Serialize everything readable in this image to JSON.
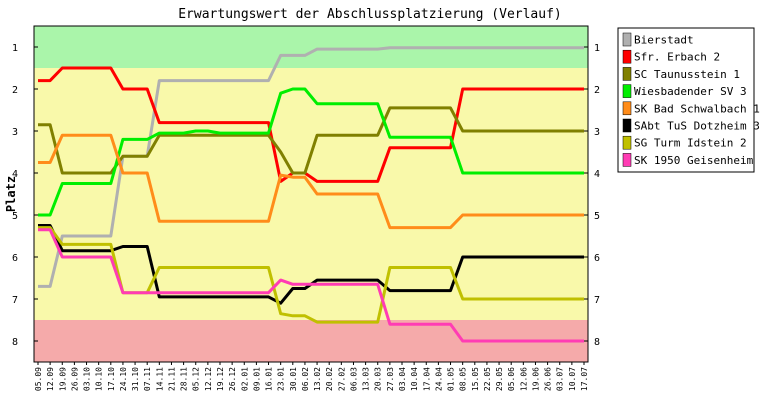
{
  "chart_data": {
    "type": "line",
    "title": "Erwartungswert der Abschlussplatzierung (Verlauf)",
    "xlabel": "",
    "ylabel": "Platz",
    "ylim": [
      0.5,
      8.5
    ],
    "y_inverted": true,
    "yticks": [
      1,
      2,
      3,
      4,
      5,
      6,
      7,
      8
    ],
    "grid": false,
    "legend_position": "right",
    "zones": [
      {
        "from": 0.5,
        "to": 1.5,
        "color": "#aaf5aa"
      },
      {
        "from": 1.5,
        "to": 7.5,
        "color": "#f9f9aa"
      },
      {
        "from": 7.5,
        "to": 8.5,
        "color": "#f5aaaa"
      }
    ],
    "categories": [
      "05.09",
      "12.09",
      "19.09",
      "26.09",
      "03.10",
      "10.10",
      "17.10",
      "24.10",
      "31.10",
      "07.11",
      "14.11",
      "21.11",
      "28.11",
      "05.12",
      "12.12",
      "19.12",
      "26.12",
      "02.01",
      "09.01",
      "16.01",
      "23.01",
      "30.01",
      "06.02",
      "13.02",
      "20.02",
      "27.02",
      "06.03",
      "13.03",
      "20.03",
      "27.03",
      "03.04",
      "10.04",
      "17.04",
      "24.04",
      "01.05",
      "08.05",
      "15.05",
      "22.05",
      "29.05",
      "05.06",
      "12.06",
      "19.06",
      "26.06",
      "03.07",
      "10.07",
      "17.07"
    ],
    "series": [
      {
        "name": "Bierstadt",
        "color": "#b0b0b0",
        "values": [
          6.7,
          6.7,
          5.5,
          5.5,
          5.5,
          5.5,
          5.5,
          3.6,
          3.6,
          3.6,
          1.8,
          1.8,
          1.8,
          1.8,
          1.8,
          1.8,
          1.8,
          1.8,
          1.8,
          1.8,
          1.2,
          1.2,
          1.2,
          1.05,
          1.05,
          1.05,
          1.05,
          1.05,
          1.05,
          1.02,
          1.02,
          1.02,
          1.02,
          1.02,
          1.02,
          1.02,
          1.02,
          1.02,
          1.02,
          1.02,
          1.02,
          1.02,
          1.02,
          1.02,
          1.02,
          1.02
        ]
      },
      {
        "name": "Sfr. Erbach 2",
        "color": "#ff0000",
        "values": [
          1.8,
          1.8,
          1.5,
          1.5,
          1.5,
          1.5,
          1.5,
          2.0,
          2.0,
          2.0,
          2.8,
          2.8,
          2.8,
          2.8,
          2.8,
          2.8,
          2.8,
          2.8,
          2.8,
          2.8,
          4.2,
          4.0,
          4.0,
          4.2,
          4.2,
          4.2,
          4.2,
          4.2,
          4.2,
          3.4,
          3.4,
          3.4,
          3.4,
          3.4,
          3.4,
          2.0,
          2.0,
          2.0,
          2.0,
          2.0,
          2.0,
          2.0,
          2.0,
          2.0,
          2.0,
          2.0
        ]
      },
      {
        "name": "SC Taunusstein 1",
        "color": "#808000",
        "values": [
          2.85,
          2.85,
          4.0,
          4.0,
          4.0,
          4.0,
          4.0,
          3.6,
          3.6,
          3.6,
          3.1,
          3.1,
          3.1,
          3.1,
          3.1,
          3.1,
          3.1,
          3.1,
          3.1,
          3.1,
          3.5,
          4.0,
          4.0,
          3.1,
          3.1,
          3.1,
          3.1,
          3.1,
          3.1,
          2.45,
          2.45,
          2.45,
          2.45,
          2.45,
          2.45,
          3.0,
          3.0,
          3.0,
          3.0,
          3.0,
          3.0,
          3.0,
          3.0,
          3.0,
          3.0,
          3.0
        ]
      },
      {
        "name": "Wiesbadender SV 3",
        "color": "#00ee00",
        "values": [
          5.0,
          5.0,
          4.25,
          4.25,
          4.25,
          4.25,
          4.25,
          3.2,
          3.2,
          3.2,
          3.05,
          3.05,
          3.05,
          3.0,
          3.0,
          3.05,
          3.05,
          3.05,
          3.05,
          3.05,
          2.1,
          2.0,
          2.0,
          2.35,
          2.35,
          2.35,
          2.35,
          2.35,
          2.35,
          3.15,
          3.15,
          3.15,
          3.15,
          3.15,
          3.15,
          4.0,
          4.0,
          4.0,
          4.0,
          4.0,
          4.0,
          4.0,
          4.0,
          4.0,
          4.0,
          4.0
        ]
      },
      {
        "name": "SK Bad Schwalbach 1",
        "color": "#ff8c1a",
        "values": [
          3.75,
          3.75,
          3.1,
          3.1,
          3.1,
          3.1,
          3.1,
          4.0,
          4.0,
          4.0,
          5.15,
          5.15,
          5.15,
          5.15,
          5.15,
          5.15,
          5.15,
          5.15,
          5.15,
          5.15,
          4.05,
          4.1,
          4.1,
          4.5,
          4.5,
          4.5,
          4.5,
          4.5,
          4.5,
          5.3,
          5.3,
          5.3,
          5.3,
          5.3,
          5.3,
          5.0,
          5.0,
          5.0,
          5.0,
          5.0,
          5.0,
          5.0,
          5.0,
          5.0,
          5.0,
          5.0
        ]
      },
      {
        "name": "SAbt TuS Dotzheim 3",
        "color": "#000000",
        "values": [
          5.25,
          5.25,
          5.85,
          5.85,
          5.85,
          5.85,
          5.85,
          5.75,
          5.75,
          5.75,
          6.95,
          6.95,
          6.95,
          6.95,
          6.95,
          6.95,
          6.95,
          6.95,
          6.95,
          6.95,
          7.1,
          6.75,
          6.75,
          6.55,
          6.55,
          6.55,
          6.55,
          6.55,
          6.55,
          6.8,
          6.8,
          6.8,
          6.8,
          6.8,
          6.8,
          6.0,
          6.0,
          6.0,
          6.0,
          6.0,
          6.0,
          6.0,
          6.0,
          6.0,
          6.0,
          6.0
        ]
      },
      {
        "name": "SG Turm Idstein 2",
        "color": "#c0c000",
        "values": [
          5.3,
          5.3,
          5.7,
          5.7,
          5.7,
          5.7,
          5.7,
          6.85,
          6.85,
          6.85,
          6.25,
          6.25,
          6.25,
          6.25,
          6.25,
          6.25,
          6.25,
          6.25,
          6.25,
          6.25,
          7.35,
          7.4,
          7.4,
          7.55,
          7.55,
          7.55,
          7.55,
          7.55,
          7.55,
          6.25,
          6.25,
          6.25,
          6.25,
          6.25,
          6.25,
          7.0,
          7.0,
          7.0,
          7.0,
          7.0,
          7.0,
          7.0,
          7.0,
          7.0,
          7.0,
          7.0
        ]
      },
      {
        "name": "SK 1950 Geisenheim",
        "color": "#ff3cb4",
        "values": [
          5.35,
          5.35,
          6.0,
          6.0,
          6.0,
          6.0,
          6.0,
          6.85,
          6.85,
          6.85,
          6.85,
          6.85,
          6.85,
          6.85,
          6.85,
          6.85,
          6.85,
          6.85,
          6.85,
          6.85,
          6.55,
          6.65,
          6.65,
          6.65,
          6.65,
          6.65,
          6.65,
          6.65,
          6.65,
          7.6,
          7.6,
          7.6,
          7.6,
          7.6,
          7.6,
          8.0,
          8.0,
          8.0,
          8.0,
          8.0,
          8.0,
          8.0,
          8.0,
          8.0,
          8.0,
          8.0
        ]
      }
    ]
  }
}
